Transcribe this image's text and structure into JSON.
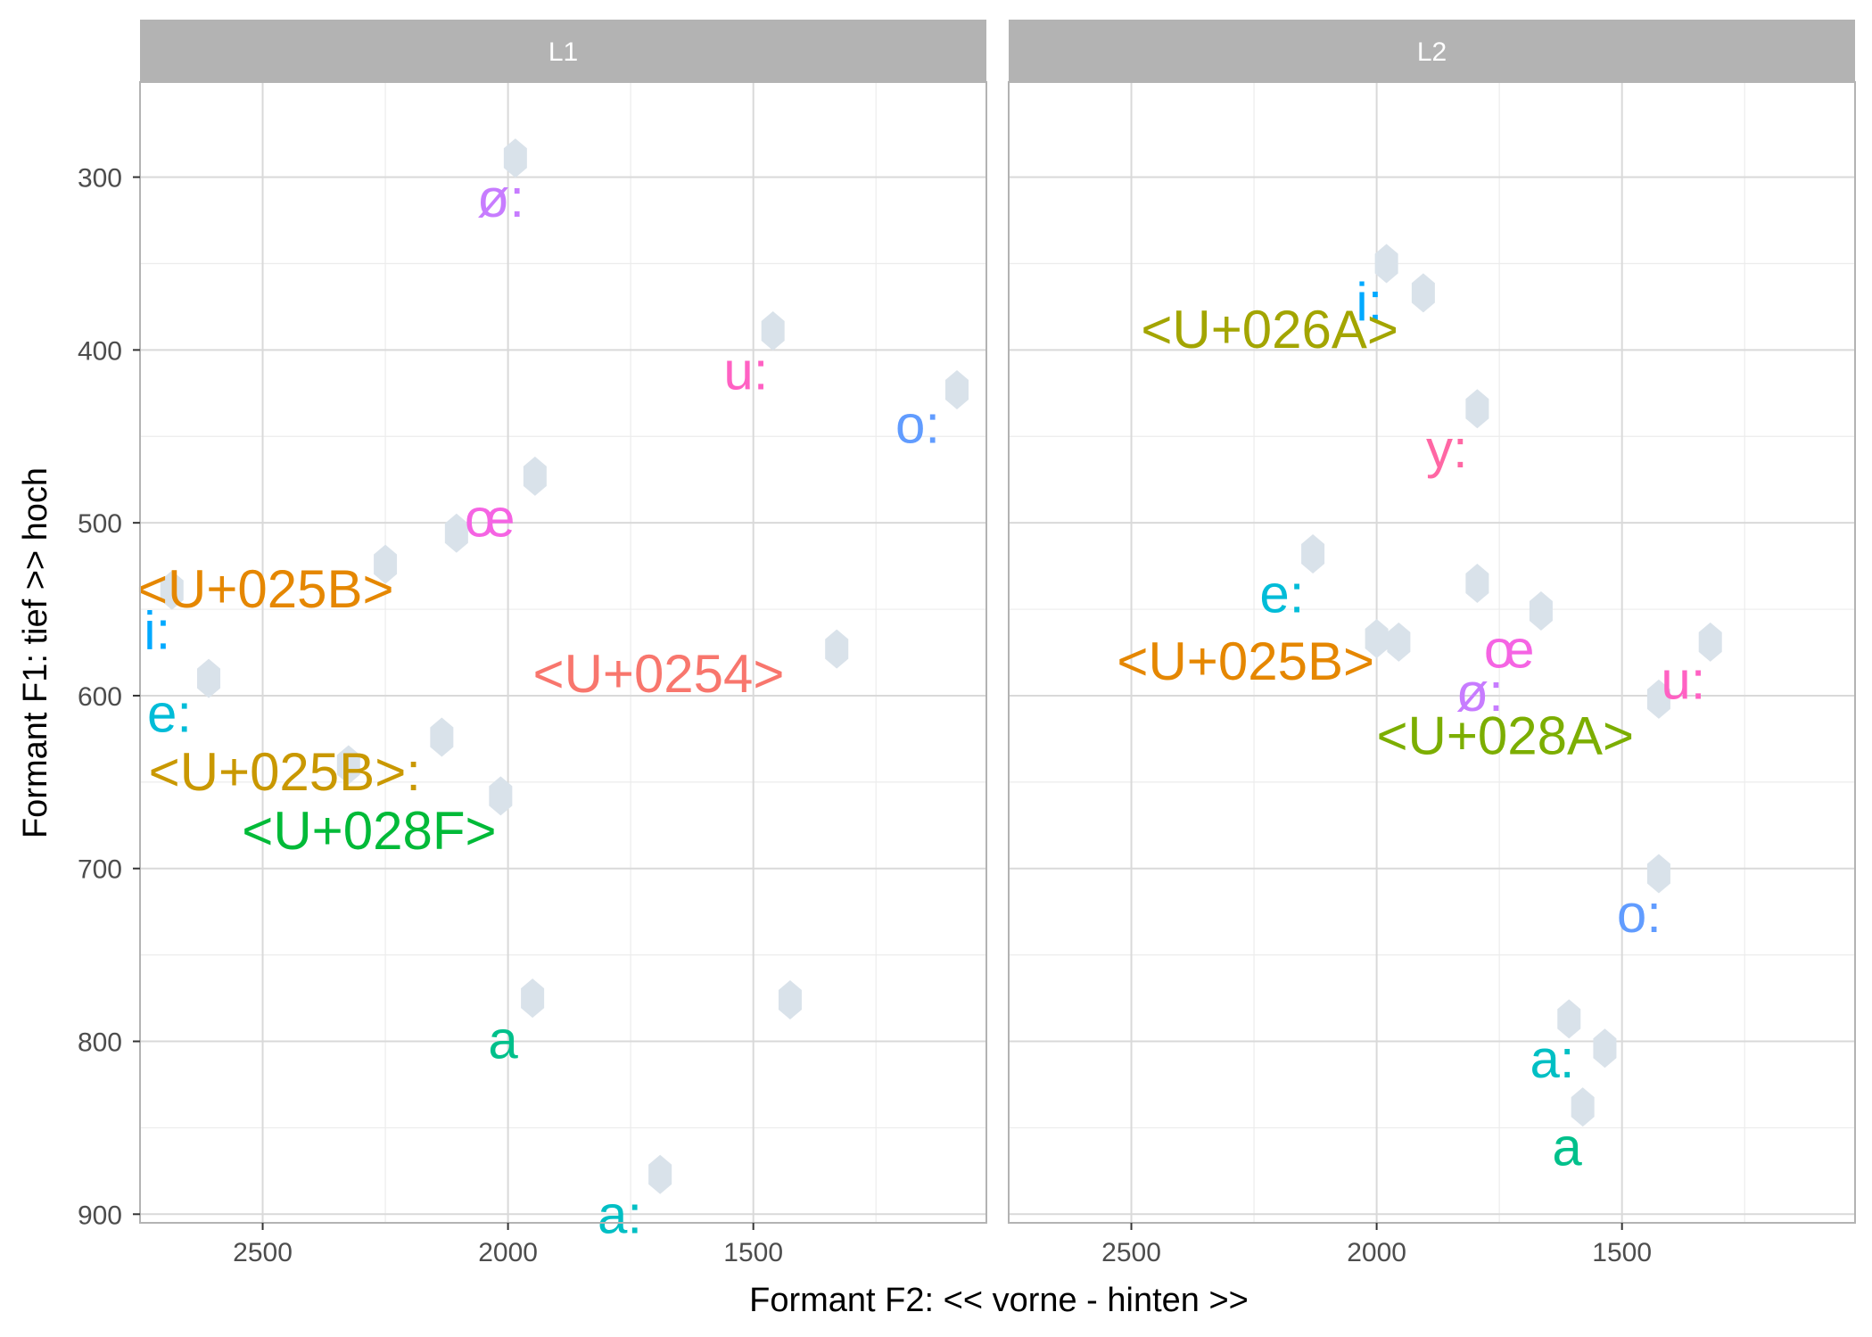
{
  "chart_data": {
    "type": "scatter",
    "xlabel": "Formant F2: << vorne - hinten >>",
    "ylabel": "Formant F1: tief >> hoch",
    "x_reversed": true,
    "y_reversed": true,
    "xlim": [
      2750,
      1025
    ],
    "ylim": [
      245,
      905
    ],
    "x_ticks": [
      2500,
      2000,
      1500
    ],
    "y_ticks": [
      300,
      400,
      500,
      600,
      700,
      800,
      900
    ],
    "grid": true,
    "colors": {
      "strip_bg": "#b3b3b3",
      "panel_border": "#b3b3b3",
      "grid_major": "#d9d9d9",
      "grid_minor": "#ececec",
      "hexagon": "#d9e2ea"
    },
    "facets": [
      {
        "name": "L1",
        "hexagons": [
          {
            "f2": 1985,
            "f1": 289
          },
          {
            "f2": 1460,
            "f1": 389
          },
          {
            "f2": 1085,
            "f1": 423
          },
          {
            "f2": 1945,
            "f1": 473
          },
          {
            "f2": 2105,
            "f1": 506
          },
          {
            "f2": 2250,
            "f1": 524
          },
          {
            "f2": 2685,
            "f1": 539
          },
          {
            "f2": 2610,
            "f1": 590
          },
          {
            "f2": 1330,
            "f1": 573
          },
          {
            "f2": 2135,
            "f1": 624
          },
          {
            "f2": 2325,
            "f1": 640
          },
          {
            "f2": 2015,
            "f1": 658
          },
          {
            "f2": 1950,
            "f1": 775
          },
          {
            "f2": 1425,
            "f1": 776
          },
          {
            "f2": 1690,
            "f1": 877
          }
        ],
        "labels": [
          {
            "text": "ø:",
            "f2": 2015,
            "f1": 312,
            "color": "#C77CFF"
          },
          {
            "text": "u:",
            "f2": 1515,
            "f1": 412,
            "color": "#FF61C3"
          },
          {
            "text": "o:",
            "f2": 1165,
            "f1": 443,
            "color": "#619CFF"
          },
          {
            "text": "œ",
            "f2": 2037,
            "f1": 497,
            "color": "#F564E3"
          },
          {
            "text": "<U+025B>",
            "f2": 2495,
            "f1": 538,
            "color": "#E58700"
          },
          {
            "text": "i:",
            "f2": 2715,
            "f1": 562,
            "color": "#00A9FF"
          },
          {
            "text": "<U+0254>",
            "f2": 1693,
            "f1": 587,
            "color": "#F8766D"
          },
          {
            "text": "e:",
            "f2": 2690,
            "f1": 610,
            "color": "#00BCD8"
          },
          {
            "text": "<U+025B>:",
            "f2": 2455,
            "f1": 644,
            "color": "#C99800"
          },
          {
            "text": "<U+028F>",
            "f2": 2283,
            "f1": 678,
            "color": "#00BA38"
          },
          {
            "text": "a",
            "f2": 2010,
            "f1": 799,
            "color": "#00C08B"
          },
          {
            "text": "a:",
            "f2": 1772,
            "f1": 900,
            "color": "#00BFC4"
          }
        ]
      },
      {
        "name": "L2",
        "hexagons": [
          {
            "f2": 1980,
            "f1": 350
          },
          {
            "f2": 1905,
            "f1": 367
          },
          {
            "f2": 1795,
            "f1": 434
          },
          {
            "f2": 2130,
            "f1": 518
          },
          {
            "f2": 1795,
            "f1": 535
          },
          {
            "f2": 1665,
            "f1": 551
          },
          {
            "f2": 2000,
            "f1": 567
          },
          {
            "f2": 1955,
            "f1": 569
          },
          {
            "f2": 1320,
            "f1": 569
          },
          {
            "f2": 1425,
            "f1": 602
          },
          {
            "f2": 1425,
            "f1": 703
          },
          {
            "f2": 1608,
            "f1": 787
          },
          {
            "f2": 1535,
            "f1": 804
          },
          {
            "f2": 1580,
            "f1": 838
          }
        ],
        "labels": [
          {
            "text": "i:",
            "f2": 2015,
            "f1": 372,
            "color": "#00A9FF"
          },
          {
            "text": "<U+026A>",
            "f2": 2218,
            "f1": 388,
            "color": "#A3A500"
          },
          {
            "text": "y:",
            "f2": 1857,
            "f1": 457,
            "color": "#FF67A4"
          },
          {
            "text": "e:",
            "f2": 2193,
            "f1": 541,
            "color": "#00BCD8"
          },
          {
            "text": "<U+025B>",
            "f2": 2267,
            "f1": 580,
            "color": "#E58700"
          },
          {
            "text": "œ",
            "f2": 1730,
            "f1": 573,
            "color": "#F564E3"
          },
          {
            "text": "ø:",
            "f2": 1790,
            "f1": 598,
            "color": "#C77CFF"
          },
          {
            "text": "u:",
            "f2": 1375,
            "f1": 591,
            "color": "#FF61C3"
          },
          {
            "text": "<U+028A>",
            "f2": 1738,
            "f1": 623,
            "color": "#7CAE00"
          },
          {
            "text": "o:",
            "f2": 1465,
            "f1": 726,
            "color": "#619CFF"
          },
          {
            "text": "a:",
            "f2": 1642,
            "f1": 810,
            "color": "#00BFC4"
          },
          {
            "text": "a",
            "f2": 1612,
            "f1": 861,
            "color": "#00C08B"
          }
        ]
      }
    ]
  }
}
